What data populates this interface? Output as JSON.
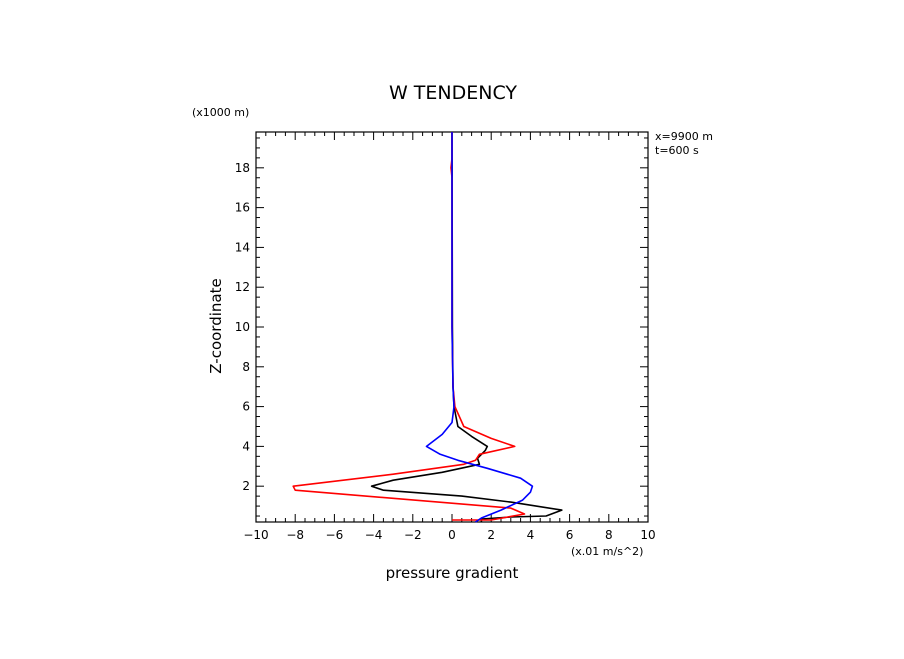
{
  "chart_data": {
    "type": "line",
    "title": "W TENDENCY",
    "xlabel": "pressure gradient",
    "xunit": "(x.01 m/s^2)",
    "ylabel": "Z-coordinate",
    "yunit": "(x1000 m)",
    "annotations": [
      "x=9900 m",
      "t=600 s"
    ],
    "xlim": [
      -10,
      10
    ],
    "ylim": [
      0.2,
      19.8
    ],
    "xticks": [
      -10,
      -8,
      -6,
      -4,
      -2,
      0,
      2,
      4,
      6,
      8,
      10
    ],
    "yticks": [
      2,
      4,
      6,
      8,
      10,
      12,
      14,
      16,
      18
    ],
    "series": [
      {
        "color": "#000000",
        "points": [
          [
            1.5,
            0.2
          ],
          [
            1.5,
            0.35
          ],
          [
            3.0,
            0.45
          ],
          [
            4.8,
            0.5
          ],
          [
            5.6,
            0.8
          ],
          [
            3.0,
            1.2
          ],
          [
            0.5,
            1.5
          ],
          [
            -3.5,
            1.8
          ],
          [
            -4.1,
            2.0
          ],
          [
            -3.0,
            2.3
          ],
          [
            -0.5,
            2.7
          ],
          [
            1.4,
            3.1
          ],
          [
            1.3,
            3.4
          ],
          [
            1.7,
            3.8
          ],
          [
            1.8,
            4.0
          ],
          [
            1.0,
            4.5
          ],
          [
            0.3,
            5.0
          ],
          [
            0.1,
            6.0
          ],
          [
            0.05,
            7.0
          ],
          [
            0.02,
            10.0
          ],
          [
            0.0,
            19.8
          ]
        ]
      },
      {
        "color": "#ff0000",
        "points": [
          [
            0.0,
            0.3
          ],
          [
            2.0,
            0.3
          ],
          [
            3.7,
            0.6
          ],
          [
            3.0,
            0.9
          ],
          [
            -8.0,
            1.8
          ],
          [
            -8.1,
            2.0
          ],
          [
            -3.0,
            2.6
          ],
          [
            0.6,
            3.1
          ],
          [
            1.2,
            3.3
          ],
          [
            1.4,
            3.6
          ],
          [
            3.2,
            4.0
          ],
          [
            2.0,
            4.4
          ],
          [
            0.6,
            5.0
          ],
          [
            0.15,
            6.0
          ],
          [
            0.05,
            7.0
          ],
          [
            0.0,
            10.0
          ],
          [
            0.0,
            17.5
          ],
          [
            -0.05,
            18.0
          ],
          [
            0.0,
            18.5
          ],
          [
            0.0,
            19.8
          ]
        ]
      },
      {
        "color": "#0000ff",
        "points": [
          [
            1.2,
            0.2
          ],
          [
            1.5,
            0.4
          ],
          [
            2.5,
            0.8
          ],
          [
            3.6,
            1.3
          ],
          [
            4.0,
            1.7
          ],
          [
            4.1,
            2.0
          ],
          [
            3.5,
            2.4
          ],
          [
            1.8,
            2.9
          ],
          [
            0.3,
            3.3
          ],
          [
            -0.6,
            3.6
          ],
          [
            -1.3,
            4.0
          ],
          [
            -0.5,
            4.6
          ],
          [
            0.0,
            5.2
          ],
          [
            0.1,
            6.0
          ],
          [
            0.05,
            7.0
          ],
          [
            0.0,
            10.0
          ],
          [
            0.0,
            19.8
          ]
        ]
      }
    ],
    "grid": false
  }
}
